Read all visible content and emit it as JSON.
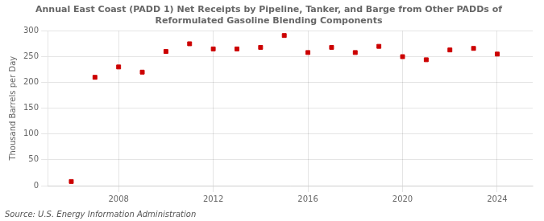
{
  "chart_data": {
    "type": "scatter",
    "title": "Annual East Coast (PADD 1) Net Receipts by Pipeline, Tanker, and Barge from Other PADDs of\nReformulated Gasoline Blending Components",
    "y_label": "Thousand Barrels per Day",
    "annotations": [
      "Source: U.S. Energy Information Administration"
    ],
    "x": [
      2006,
      2007,
      2008,
      2009,
      2010,
      2011,
      2012,
      2013,
      2014,
      2015,
      2016,
      2017,
      2018,
      2019,
      2020,
      2021,
      2022,
      2023,
      2024
    ],
    "values": [
      8,
      210,
      230,
      220,
      260,
      275,
      265,
      265,
      268,
      291,
      258,
      268,
      258,
      270,
      250,
      244,
      263,
      266,
      255
    ],
    "color": "#cc0000",
    "marker": "square",
    "xlim": [
      2005.0,
      2025.5
    ],
    "xticks": [
      2008,
      2012,
      2016,
      2020,
      2024
    ],
    "ylim": [
      0,
      300
    ],
    "yticks": [
      0,
      50,
      100,
      150,
      200,
      250,
      300
    ],
    "grid": true
  }
}
